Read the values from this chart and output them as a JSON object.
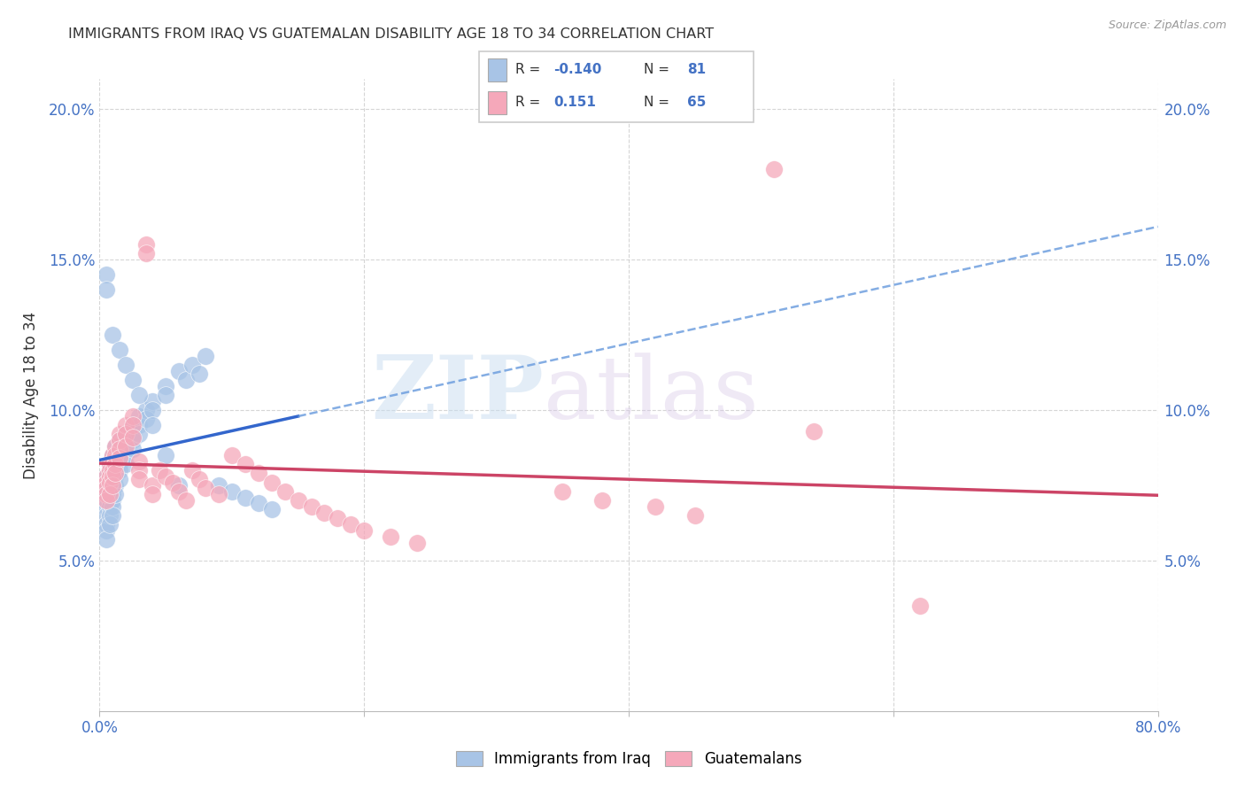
{
  "title": "IMMIGRANTS FROM IRAQ VS GUATEMALAN DISABILITY AGE 18 TO 34 CORRELATION CHART",
  "source": "Source: ZipAtlas.com",
  "ylabel": "Disability Age 18 to 34",
  "xlim": [
    0.0,
    0.8
  ],
  "ylim": [
    0.0,
    0.21
  ],
  "xtick_labels": [
    "0.0%",
    "",
    "",
    "",
    "80.0%"
  ],
  "xtick_vals": [
    0.0,
    0.2,
    0.4,
    0.6,
    0.8
  ],
  "ytick_labels": [
    "5.0%",
    "10.0%",
    "15.0%",
    "20.0%"
  ],
  "ytick_vals": [
    0.05,
    0.1,
    0.15,
    0.2
  ],
  "iraq_color": "#a8c4e6",
  "guatemala_color": "#f5a8ba",
  "iraq_r": -0.14,
  "iraq_n": 81,
  "guatemala_r": 0.151,
  "guatemala_n": 65,
  "legend_label_iraq": "Immigrants from Iraq",
  "legend_label_guatemala": "Guatemalans",
  "watermark_zip": "ZIP",
  "watermark_atlas": "atlas",
  "iraq_scatter_x": [
    0.005,
    0.005,
    0.005,
    0.005,
    0.005,
    0.005,
    0.005,
    0.005,
    0.005,
    0.005,
    0.008,
    0.008,
    0.008,
    0.008,
    0.008,
    0.008,
    0.008,
    0.008,
    0.008,
    0.008,
    0.01,
    0.01,
    0.01,
    0.01,
    0.01,
    0.01,
    0.01,
    0.01,
    0.01,
    0.01,
    0.012,
    0.012,
    0.012,
    0.012,
    0.012,
    0.012,
    0.012,
    0.015,
    0.015,
    0.015,
    0.015,
    0.015,
    0.015,
    0.02,
    0.02,
    0.02,
    0.02,
    0.02,
    0.025,
    0.025,
    0.025,
    0.025,
    0.03,
    0.03,
    0.03,
    0.035,
    0.035,
    0.04,
    0.04,
    0.05,
    0.05,
    0.06,
    0.065,
    0.07,
    0.075,
    0.08,
    0.09,
    0.1,
    0.11,
    0.12,
    0.13,
    0.005,
    0.005,
    0.01,
    0.015,
    0.02,
    0.025,
    0.03,
    0.04,
    0.05,
    0.06
  ],
  "iraq_scatter_y": [
    0.078,
    0.076,
    0.074,
    0.072,
    0.07,
    0.068,
    0.065,
    0.062,
    0.06,
    0.057,
    0.082,
    0.08,
    0.078,
    0.076,
    0.074,
    0.072,
    0.07,
    0.068,
    0.065,
    0.062,
    0.085,
    0.083,
    0.08,
    0.078,
    0.076,
    0.074,
    0.072,
    0.07,
    0.068,
    0.065,
    0.088,
    0.085,
    0.082,
    0.08,
    0.078,
    0.075,
    0.072,
    0.09,
    0.088,
    0.085,
    0.082,
    0.08,
    0.077,
    0.092,
    0.09,
    0.088,
    0.085,
    0.082,
    0.095,
    0.092,
    0.09,
    0.087,
    0.098,
    0.095,
    0.092,
    0.1,
    0.097,
    0.103,
    0.1,
    0.108,
    0.105,
    0.113,
    0.11,
    0.115,
    0.112,
    0.118,
    0.075,
    0.073,
    0.071,
    0.069,
    0.067,
    0.145,
    0.14,
    0.125,
    0.12,
    0.115,
    0.11,
    0.105,
    0.095,
    0.085,
    0.075
  ],
  "guatemala_scatter_x": [
    0.005,
    0.005,
    0.005,
    0.005,
    0.005,
    0.008,
    0.008,
    0.008,
    0.008,
    0.008,
    0.01,
    0.01,
    0.01,
    0.01,
    0.01,
    0.012,
    0.012,
    0.012,
    0.012,
    0.015,
    0.015,
    0.015,
    0.015,
    0.02,
    0.02,
    0.02,
    0.025,
    0.025,
    0.025,
    0.03,
    0.03,
    0.03,
    0.035,
    0.035,
    0.04,
    0.04,
    0.045,
    0.05,
    0.055,
    0.06,
    0.065,
    0.07,
    0.075,
    0.08,
    0.09,
    0.1,
    0.11,
    0.12,
    0.13,
    0.14,
    0.15,
    0.16,
    0.17,
    0.18,
    0.19,
    0.2,
    0.22,
    0.24,
    0.35,
    0.38,
    0.42,
    0.45,
    0.51,
    0.54,
    0.62
  ],
  "guatemala_scatter_y": [
    0.078,
    0.076,
    0.074,
    0.072,
    0.07,
    0.082,
    0.08,
    0.078,
    0.076,
    0.072,
    0.085,
    0.083,
    0.08,
    0.078,
    0.075,
    0.088,
    0.085,
    0.082,
    0.079,
    0.092,
    0.09,
    0.087,
    0.084,
    0.095,
    0.092,
    0.088,
    0.098,
    0.095,
    0.091,
    0.083,
    0.08,
    0.077,
    0.155,
    0.152,
    0.075,
    0.072,
    0.08,
    0.078,
    0.076,
    0.073,
    0.07,
    0.08,
    0.077,
    0.074,
    0.072,
    0.085,
    0.082,
    0.079,
    0.076,
    0.073,
    0.07,
    0.068,
    0.066,
    0.064,
    0.062,
    0.06,
    0.058,
    0.056,
    0.073,
    0.07,
    0.068,
    0.065,
    0.18,
    0.093,
    0.035
  ]
}
